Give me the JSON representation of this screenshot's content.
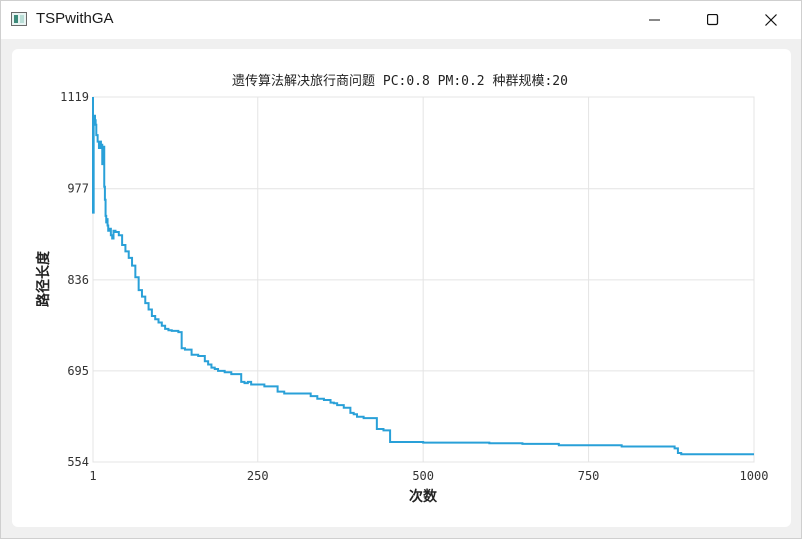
{
  "window": {
    "title": "TSPwithGA",
    "icons": {
      "app": "app-window-icon",
      "minimize": "minimize-icon",
      "maximize": "maximize-icon",
      "close": "close-icon"
    }
  },
  "chart_data": {
    "type": "line",
    "title": "遗传算法解决旅行商问题 PC:0.8 PM:0.2 种群规模:20",
    "xlabel": "次数",
    "ylabel": "路径长度",
    "xlim": [
      1,
      1000
    ],
    "ylim": [
      554,
      1119
    ],
    "x_ticks": [
      "1",
      "250",
      "500",
      "750",
      "1000"
    ],
    "y_ticks": [
      "1119",
      "977",
      "836",
      "695",
      "554"
    ],
    "grid": true,
    "legend": "none",
    "color": "#29a0d8",
    "series": [
      {
        "x": [
          1,
          1,
          2,
          3,
          4,
          5,
          6,
          7,
          8,
          9,
          10,
          11,
          12,
          13,
          14,
          15,
          16,
          17,
          18,
          19,
          20,
          21,
          22,
          23,
          24,
          26,
          28,
          30,
          32,
          35,
          40,
          45,
          50,
          55,
          60,
          65,
          70,
          75,
          80,
          85,
          90,
          95,
          100,
          105,
          110,
          115,
          120,
          125,
          130,
          135,
          140,
          150,
          155,
          160,
          170,
          175,
          180,
          185,
          190,
          200,
          210,
          220,
          225,
          230,
          235,
          240,
          260,
          280,
          290,
          300,
          330,
          340,
          350,
          360,
          365,
          370,
          380,
          390,
          395,
          400,
          410,
          430,
          440,
          450,
          500,
          550,
          600,
          650,
          700,
          705,
          800,
          850,
          880,
          885,
          890,
          1000
        ],
        "y": [
          1119,
          940,
          1085,
          1090,
          1083,
          1076,
          1060,
          1060,
          1050,
          1050,
          1040,
          1042,
          1050,
          1040,
          1045,
          1015,
          1040,
          1042,
          980,
          960,
          935,
          925,
          930,
          920,
          912,
          915,
          905,
          900,
          912,
          910,
          905,
          890,
          880,
          870,
          858,
          840,
          820,
          810,
          800,
          790,
          780,
          775,
          770,
          765,
          760,
          758,
          757,
          757,
          755,
          730,
          728,
          720,
          720,
          718,
          710,
          705,
          700,
          698,
          695,
          693,
          690,
          690,
          678,
          676,
          678,
          674,
          671,
          663,
          660,
          660,
          656,
          652,
          650,
          646,
          645,
          642,
          638,
          630,
          628,
          624,
          622,
          605,
          603,
          585,
          584,
          584,
          583,
          582,
          582,
          580,
          578,
          578,
          575,
          568,
          566,
          566
        ]
      }
    ]
  }
}
